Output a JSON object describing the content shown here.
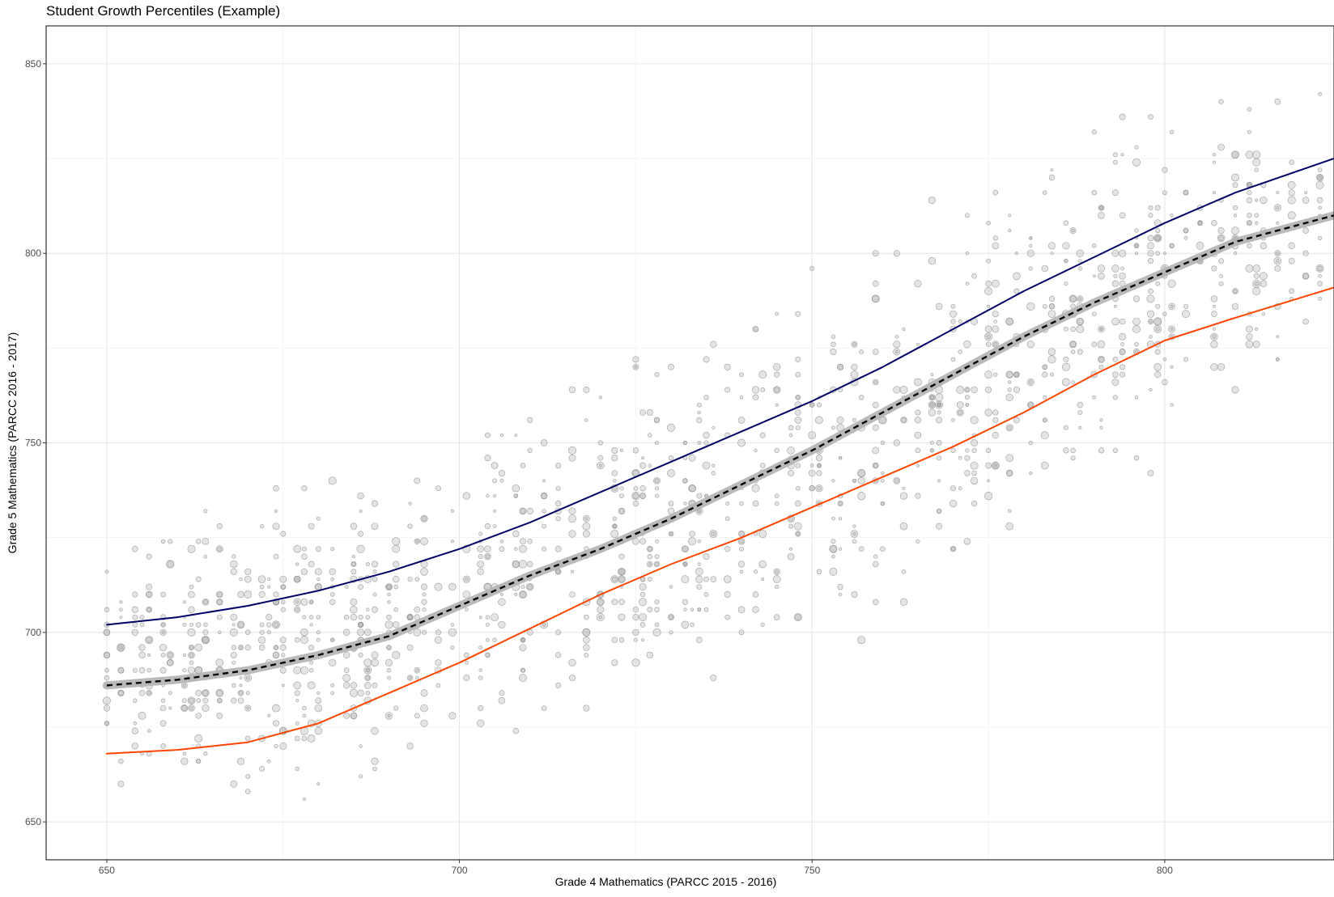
{
  "chart_data": {
    "type": "scatter",
    "title": "Student Growth Percentiles (Example)",
    "xlabel": "Grade 4 Mathematics (PARCC 2015 - 2016)",
    "ylabel": "Grade 5 Mathematics (PARCC 2016 - 2017)",
    "xlim": [
      641.4,
      824
    ],
    "ylim": [
      640,
      860
    ],
    "xticks": [
      650,
      700,
      750,
      800
    ],
    "yticks": [
      650,
      700,
      750,
      800,
      850
    ],
    "grid": true,
    "scatter_color": "#b3b3b3",
    "point_density": [
      {
        "x": 650,
        "y_range": [
          650,
          728
        ]
      },
      {
        "x": 660,
        "y_range": [
          650,
          738
        ]
      },
      {
        "x": 670,
        "y_range": [
          650,
          745
        ]
      },
      {
        "x": 680,
        "y_range": [
          650,
          750
        ]
      },
      {
        "x": 690,
        "y_range": [
          650,
          755
        ]
      },
      {
        "x": 700,
        "y_range": [
          652,
          765
        ]
      },
      {
        "x": 710,
        "y_range": [
          656,
          775
        ]
      },
      {
        "x": 720,
        "y_range": [
          660,
          782
        ]
      },
      {
        "x": 730,
        "y_range": [
          665,
          790
        ]
      },
      {
        "x": 740,
        "y_range": [
          672,
          795
        ]
      },
      {
        "x": 750,
        "y_range": [
          682,
          805
        ]
      },
      {
        "x": 760,
        "y_range": [
          692,
          815
        ]
      },
      {
        "x": 770,
        "y_range": [
          700,
          825
        ]
      },
      {
        "x": 780,
        "y_range": [
          708,
          840
        ]
      },
      {
        "x": 790,
        "y_range": [
          722,
          848
        ]
      },
      {
        "x": 800,
        "y_range": [
          738,
          850
        ]
      },
      {
        "x": 810,
        "y_range": [
          752,
          850
        ]
      },
      {
        "x": 820,
        "y_range": [
          765,
          850
        ]
      }
    ],
    "series": [
      {
        "color": "#b3b3b3",
        "style": "band",
        "x": [
          650,
          660,
          670,
          680,
          690,
          700,
          710,
          720,
          730,
          740,
          750,
          760,
          770,
          780,
          790,
          800,
          810,
          824
        ],
        "values": [
          686,
          687.5,
          690,
          694,
          699,
          707,
          715,
          722,
          730,
          739,
          748,
          758,
          768,
          778,
          787,
          795,
          803,
          810
        ]
      },
      {
        "color": "#000000",
        "style": "dashed",
        "x": [
          650,
          660,
          670,
          680,
          690,
          700,
          710,
          720,
          730,
          740,
          750,
          760,
          770,
          780,
          790,
          800,
          810,
          824
        ],
        "values": [
          686,
          687.5,
          690,
          694,
          699,
          707,
          715,
          722,
          730,
          739,
          748,
          758,
          768,
          778,
          787,
          795,
          803,
          810
        ]
      },
      {
        "color": "#000066",
        "style": "solid",
        "x": [
          650,
          660,
          670,
          680,
          690,
          700,
          710,
          720,
          730,
          740,
          750,
          760,
          770,
          780,
          790,
          800,
          810,
          824
        ],
        "values": [
          702,
          704,
          707,
          711,
          716,
          722,
          729,
          737,
          745,
          753,
          761,
          770,
          780,
          790,
          799,
          808,
          816,
          825
        ]
      },
      {
        "color": "#ff4500",
        "style": "solid",
        "x": [
          650,
          660,
          670,
          680,
          690,
          700,
          710,
          720,
          730,
          740,
          750,
          760,
          770,
          780,
          790,
          800,
          810,
          824
        ],
        "values": [
          668,
          669,
          671,
          676,
          684,
          692,
          701,
          710,
          718,
          725,
          733,
          741,
          749,
          758,
          768,
          777,
          783,
          791
        ]
      }
    ]
  }
}
